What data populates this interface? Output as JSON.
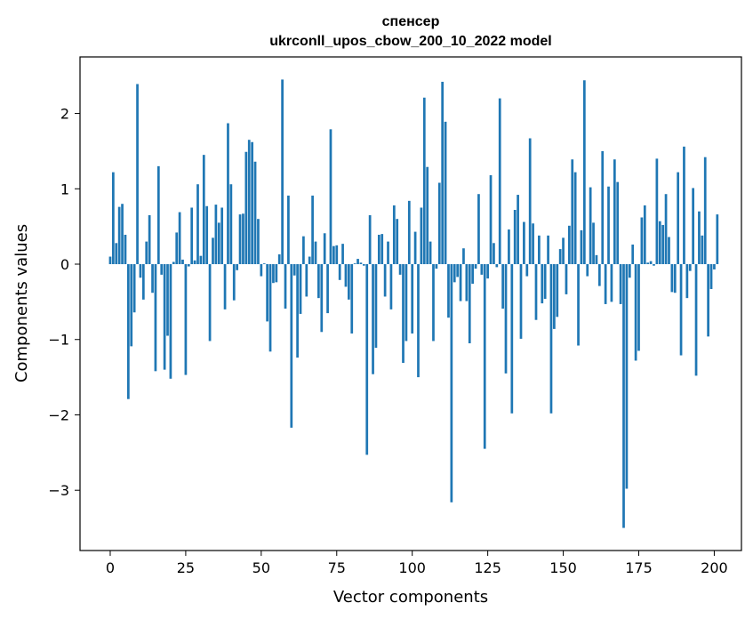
{
  "chart_data": {
    "type": "bar",
    "title_line1": "спенсер",
    "title_line2": "ukrconll_upos_cbow_200_10_2022 model",
    "xlabel": "Vector components",
    "ylabel": "Components values",
    "xlim": [
      -10,
      209
    ],
    "ylim": [
      -3.8,
      2.75
    ],
    "x_ticks": [
      0,
      25,
      50,
      75,
      100,
      125,
      150,
      175,
      200
    ],
    "x_tick_labels": [
      "0",
      "25",
      "50",
      "75",
      "100",
      "125",
      "150",
      "175",
      "200"
    ],
    "y_ticks": [
      2,
      1,
      0,
      -1,
      -2,
      -3
    ],
    "y_tick_labels": [
      "2",
      "1",
      "0",
      "−1",
      "−2",
      "−3"
    ],
    "color": "#1f77b4",
    "values": [
      0.1,
      1.22,
      0.28,
      0.76,
      0.8,
      0.39,
      -1.79,
      -1.09,
      -0.64,
      2.39,
      -0.18,
      -0.47,
      0.3,
      0.65,
      -0.38,
      -1.42,
      1.3,
      -0.14,
      -1.4,
      -0.95,
      -1.52,
      0.03,
      0.42,
      0.69,
      0.06,
      -1.47,
      -0.03,
      0.75,
      0.05,
      1.06,
      0.11,
      1.45,
      0.77,
      -1.02,
      0.35,
      0.79,
      0.55,
      0.75,
      -0.6,
      1.87,
      1.06,
      -0.48,
      -0.08,
      0.66,
      0.67,
      1.49,
      1.65,
      1.62,
      1.36,
      0.6,
      -0.16,
      0.01,
      -0.76,
      -1.16,
      -0.25,
      -0.24,
      0.13,
      2.45,
      -0.59,
      0.91,
      -2.17,
      -0.15,
      -1.24,
      -0.66,
      0.37,
      -0.43,
      0.1,
      0.91,
      0.3,
      -0.45,
      -0.9,
      0.41,
      -0.65,
      1.79,
      0.24,
      0.25,
      -0.21,
      0.27,
      -0.3,
      -0.47,
      -0.92,
      0.01,
      0.07,
      0.02,
      -0.02,
      -2.53,
      0.65,
      -1.46,
      -1.11,
      0.39,
      0.4,
      -0.43,
      0.3,
      -0.6,
      0.78,
      0.6,
      -0.14,
      -1.31,
      -1.02,
      0.84,
      -0.92,
      0.43,
      -1.5,
      0.75,
      2.21,
      1.29,
      0.3,
      -1.02,
      -0.06,
      1.08,
      2.42,
      1.89,
      -0.71,
      -3.16,
      -0.24,
      -0.17,
      -0.49,
      0.21,
      -0.49,
      -1.05,
      -0.26,
      -0.06,
      0.93,
      -0.14,
      -2.45,
      -0.19,
      1.18,
      0.28,
      -0.04,
      2.2,
      -0.59,
      -1.45,
      0.46,
      -1.98,
      0.72,
      0.92,
      -0.99,
      0.56,
      -0.16,
      1.67,
      0.54,
      -0.74,
      0.38,
      -0.52,
      -0.46,
      0.38,
      -1.98,
      -0.86,
      -0.7,
      0.2,
      0.35,
      -0.4,
      0.51,
      1.39,
      1.22,
      -1.08,
      0.45,
      2.44,
      -0.16,
      1.02,
      0.55,
      0.12,
      -0.29,
      1.5,
      -0.53,
      1.03,
      -0.5,
      1.39,
      1.09,
      -0.53,
      -3.5,
      -2.98,
      -0.18,
      0.26,
      -1.28,
      -1.15,
      0.62,
      0.78,
      0.02,
      0.04,
      -0.02,
      1.4,
      0.57,
      0.52,
      0.93,
      0.36,
      -0.37,
      -0.38,
      1.22,
      -1.21,
      1.56,
      -0.45,
      -0.09,
      1.01,
      -1.48,
      0.7,
      0.38,
      1.42,
      -0.96,
      -0.33,
      -0.07,
      0.66
    ]
  }
}
